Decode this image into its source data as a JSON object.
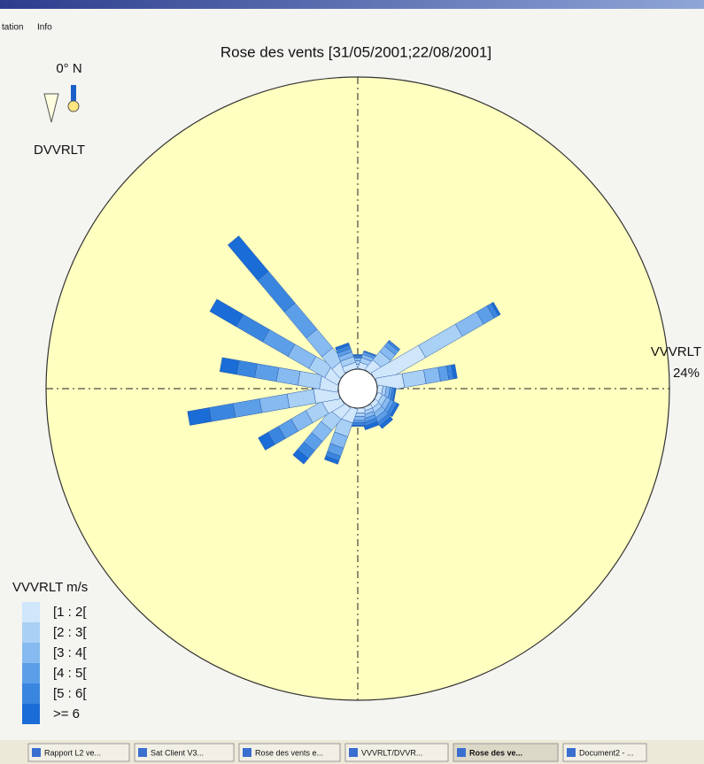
{
  "window": {
    "menu": [
      "tation",
      "Info"
    ]
  },
  "chart_data": {
    "type": "windrose",
    "title": "Rose des vents [31/05/2001;22/08/2001]",
    "north_label": "0° N",
    "direction_label": "DVVRLT",
    "radial_label": "VVVRLT",
    "rlim": [
      0,
      24
    ],
    "rticks": [
      {
        "value": 24,
        "label": "24%"
      }
    ],
    "legend_title": "VVVRLT m/s",
    "angles": [
      0,
      20,
      40,
      60,
      80,
      100,
      120,
      140,
      160,
      180,
      200,
      220,
      240,
      260,
      280,
      300,
      320,
      340
    ],
    "series": [
      {
        "name": "[1 : 2[",
        "color": "#cfe6fb",
        "values": [
          0.4,
          0.5,
          1.0,
          4.5,
          2.2,
          0.4,
          0.4,
          0.4,
          0.3,
          0.4,
          1.2,
          1.2,
          1.5,
          2.0,
          1.5,
          1.2,
          1.0,
          0.5
        ]
      },
      {
        "name": "[2 : 3[",
        "color": "#a9d0f5",
        "values": [
          0.3,
          0.4,
          0.9,
          3.5,
          1.8,
          0.3,
          0.4,
          0.4,
          0.3,
          0.3,
          1.2,
          1.2,
          1.5,
          2.2,
          1.8,
          1.5,
          1.3,
          0.5
        ]
      },
      {
        "name": "[3 : 4[",
        "color": "#86baf0",
        "values": [
          0.2,
          0.3,
          0.6,
          2.0,
          1.2,
          0.3,
          0.4,
          0.4,
          0.3,
          0.3,
          1.0,
          1.2,
          1.4,
          2.3,
          1.8,
          2.0,
          2.0,
          0.4
        ]
      },
      {
        "name": "[4 : 5[",
        "color": "#5c9fe8",
        "values": [
          0.1,
          0.2,
          0.4,
          1.0,
          0.7,
          0.2,
          0.3,
          0.4,
          0.3,
          0.2,
          0.7,
          1.0,
          1.2,
          2.2,
          1.8,
          2.4,
          2.8,
          0.3
        ]
      },
      {
        "name": "[5 : 6[",
        "color": "#3a86df",
        "values": [
          0.1,
          0.1,
          0.2,
          0.4,
          0.4,
          0.2,
          0.3,
          0.3,
          0.3,
          0.2,
          0.4,
          0.8,
          1.0,
          2.0,
          1.5,
          2.5,
          3.4,
          0.3
        ]
      },
      {
        "name": ">= 6",
        "color": "#1a6cd6",
        "values": [
          0.1,
          0,
          0,
          0.2,
          0.3,
          0.1,
          0.2,
          0.3,
          0.3,
          0.1,
          0.3,
          0.6,
          0.9,
          1.8,
          1.4,
          2.5,
          3.8,
          0.2
        ]
      }
    ]
  },
  "taskbar": {
    "items": [
      "Rapport L2 ve...",
      "Sat Client V3...",
      "Rose des vents e...",
      "VVVRLT/DVVR...",
      "Rose des ve...",
      "Document2 - ..."
    ]
  }
}
